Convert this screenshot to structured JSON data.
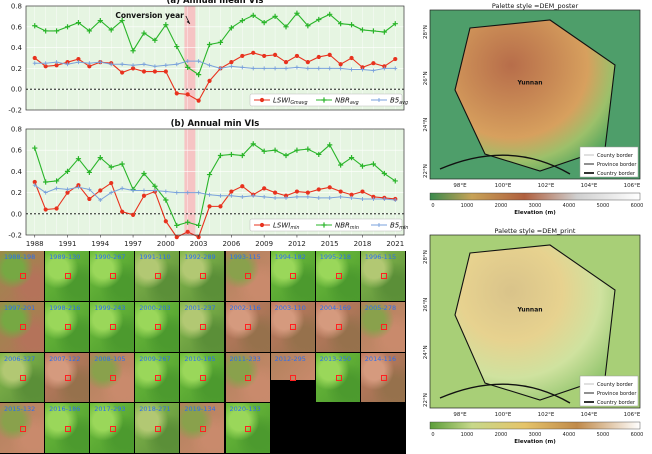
{
  "chart_data": [
    {
      "type": "line",
      "title": "(a) Annual mean VIs",
      "annotation": "Conversion year",
      "x": [
        1988,
        1989,
        1990,
        1991,
        1992,
        1993,
        1994,
        1995,
        1996,
        1997,
        1998,
        1999,
        2000,
        2001,
        2002,
        2003,
        2004,
        2005,
        2006,
        2007,
        2008,
        2009,
        2010,
        2011,
        2012,
        2013,
        2014,
        2015,
        2016,
        2017,
        2018,
        2019,
        2020,
        2021
      ],
      "ylim": [
        -0.2,
        0.8
      ],
      "yticks": [
        "0.8",
        "0.6",
        "0.4",
        "0.2",
        "0.0",
        "-0.2"
      ],
      "conversion_span": [
        2001.7,
        2002.7
      ],
      "series": [
        {
          "name": "LSWI_Gmavg",
          "legend_main": "LSWI",
          "legend_sub": "Gmavg",
          "color": "#e8321e",
          "values": [
            0.3,
            0.22,
            0.23,
            0.26,
            0.29,
            0.22,
            0.26,
            0.25,
            0.16,
            0.2,
            0.17,
            0.17,
            0.17,
            -0.04,
            -0.05,
            -0.11,
            0.08,
            0.2,
            0.26,
            0.32,
            0.35,
            0.32,
            0.33,
            0.26,
            0.32,
            0.26,
            0.31,
            0.33,
            0.24,
            0.3,
            0.21,
            0.25,
            0.22,
            0.29
          ]
        },
        {
          "name": "NBR_avg",
          "legend_main": "NBR",
          "legend_sub": "avg",
          "color": "#2ab52a",
          "values": [
            0.61,
            0.56,
            0.56,
            0.6,
            0.64,
            0.56,
            0.66,
            0.57,
            0.66,
            0.37,
            0.54,
            0.47,
            0.62,
            0.41,
            0.21,
            0.14,
            0.43,
            0.45,
            0.59,
            0.66,
            0.71,
            0.64,
            0.7,
            0.6,
            0.73,
            0.61,
            0.67,
            0.72,
            0.63,
            0.62,
            0.57,
            0.56,
            0.55,
            0.63
          ]
        },
        {
          "name": "B5_avg",
          "legend_main": "B5",
          "legend_sub": "avg",
          "color": "#7aa2dc",
          "values": [
            0.25,
            0.25,
            0.26,
            0.24,
            0.26,
            0.25,
            0.26,
            0.24,
            0.24,
            0.23,
            0.24,
            0.22,
            0.23,
            0.24,
            0.27,
            0.27,
            0.23,
            0.2,
            0.22,
            0.21,
            0.2,
            0.2,
            0.2,
            0.2,
            0.21,
            0.2,
            0.2,
            0.2,
            0.2,
            0.19,
            0.19,
            0.18,
            0.2,
            0.2
          ]
        }
      ]
    },
    {
      "type": "line",
      "title": "(b) Annual min VIs",
      "x": [
        1988,
        1989,
        1990,
        1991,
        1992,
        1993,
        1994,
        1995,
        1996,
        1997,
        1998,
        1999,
        2000,
        2001,
        2002,
        2003,
        2004,
        2005,
        2006,
        2007,
        2008,
        2009,
        2010,
        2011,
        2012,
        2013,
        2014,
        2015,
        2016,
        2017,
        2018,
        2019,
        2020,
        2021
      ],
      "ylim": [
        -0.2,
        0.8
      ],
      "yticks": [
        "0.8",
        "0.6",
        "0.4",
        "0.2",
        "0.0",
        "-0.2"
      ],
      "xtick_labels": [
        "1988",
        "1991",
        "1994",
        "1997",
        "2000",
        "2003",
        "2006",
        "2009",
        "2012",
        "2015",
        "2018",
        "2021"
      ],
      "conversion_span": [
        2001.7,
        2002.7
      ],
      "series": [
        {
          "name": "LSWI_min",
          "legend_main": "LSWI",
          "legend_sub": "min",
          "color": "#e8321e",
          "values": [
            0.3,
            0.04,
            0.05,
            0.2,
            0.27,
            0.14,
            0.22,
            0.29,
            0.02,
            -0.01,
            0.17,
            0.21,
            -0.07,
            -0.22,
            -0.17,
            -0.22,
            0.07,
            0.07,
            0.21,
            0.26,
            0.18,
            0.24,
            0.2,
            0.17,
            0.21,
            0.2,
            0.23,
            0.25,
            0.21,
            0.18,
            0.21,
            0.16,
            0.15,
            0.14
          ]
        },
        {
          "name": "NBR_min",
          "legend_main": "NBR",
          "legend_sub": "min",
          "color": "#2ab52a",
          "values": [
            0.62,
            0.3,
            0.31,
            0.4,
            0.52,
            0.39,
            0.53,
            0.44,
            0.47,
            0.23,
            0.38,
            0.26,
            0.13,
            -0.11,
            -0.08,
            -0.11,
            0.37,
            0.55,
            0.56,
            0.55,
            0.66,
            0.59,
            0.6,
            0.55,
            0.6,
            0.61,
            0.56,
            0.65,
            0.46,
            0.53,
            0.45,
            0.47,
            0.38,
            0.31
          ]
        },
        {
          "name": "B5_min",
          "legend_main": "B5",
          "legend_sub": "min",
          "color": "#7aa2dc",
          "values": [
            0.27,
            0.2,
            0.24,
            0.23,
            0.25,
            0.23,
            0.13,
            0.2,
            0.24,
            0.22,
            0.22,
            0.22,
            0.21,
            0.2,
            0.2,
            0.2,
            0.18,
            0.17,
            0.17,
            0.16,
            0.17,
            0.16,
            0.15,
            0.15,
            0.16,
            0.16,
            0.15,
            0.15,
            0.16,
            0.15,
            0.14,
            0.14,
            0.14,
            0.13
          ]
        }
      ]
    }
  ],
  "tiles": [
    {
      "label": "1988-198",
      "tone": "rg"
    },
    {
      "label": "1989-130",
      "tone": "g"
    },
    {
      "label": "1990-267",
      "tone": "g"
    },
    {
      "label": "1991-110",
      "tone": "gm"
    },
    {
      "label": "1992-289",
      "tone": "gm"
    },
    {
      "label": "1993-115",
      "tone": "rm"
    },
    {
      "label": "1994-182",
      "tone": "g"
    },
    {
      "label": "1995-218",
      "tone": "g"
    },
    {
      "label": "1996-115",
      "tone": "gm"
    },
    {
      "label": "1997-201",
      "tone": "rg"
    },
    {
      "label": "1998-216",
      "tone": "g"
    },
    {
      "label": "1999-243",
      "tone": "g"
    },
    {
      "label": "2000-203",
      "tone": "g"
    },
    {
      "label": "2001-237",
      "tone": "gm"
    },
    {
      "label": "2002-116",
      "tone": "r"
    },
    {
      "label": "2003-110",
      "tone": "r"
    },
    {
      "label": "2004-169",
      "tone": "r"
    },
    {
      "label": "2005-278",
      "tone": "rm"
    },
    {
      "label": "2006-327",
      "tone": "gm"
    },
    {
      "label": "2007-122",
      "tone": "r"
    },
    {
      "label": "2008-105",
      "tone": "rm"
    },
    {
      "label": "2009-267",
      "tone": "g"
    },
    {
      "label": "2010-185",
      "tone": "g"
    },
    {
      "label": "2011-233",
      "tone": "rm"
    },
    {
      "label": "2012-295",
      "tone": "rm"
    },
    {
      "label": "2013-250",
      "tone": "g"
    },
    {
      "label": "2014-116",
      "tone": "r"
    },
    {
      "label": "2015-132",
      "tone": "rm"
    },
    {
      "label": "2016-186",
      "tone": "g"
    },
    {
      "label": "2017-293",
      "tone": "g"
    },
    {
      "label": "2018-271",
      "tone": "gm"
    },
    {
      "label": "2019-134",
      "tone": "rm"
    },
    {
      "label": "2020-133",
      "tone": "g"
    }
  ],
  "maps": [
    {
      "title": "Palette style =DEM_poster",
      "place": "Yunnan",
      "lat_labels": [
        "28°N",
        "26°N",
        "24°N",
        "22°N"
      ],
      "lon_labels": [
        "98°E",
        "100°E",
        "102°E",
        "104°E",
        "106°E"
      ],
      "legend": [
        "County border",
        "Province border",
        "Country border"
      ],
      "cbar_ticks": [
        "0",
        "1000",
        "2000",
        "3000",
        "4000",
        "5000",
        "6000"
      ],
      "cbar_label": "Elevation (m)"
    },
    {
      "title": "Palette style =DEM_print",
      "place": "Yunnan",
      "lat_labels": [
        "28°N",
        "26°N",
        "24°N",
        "22°N"
      ],
      "lon_labels": [
        "98°E",
        "100°E",
        "102°E",
        "104°E",
        "106°E"
      ],
      "legend": [
        "County border",
        "Province border",
        "Country border"
      ],
      "cbar_ticks": [
        "0",
        "1000",
        "2000",
        "3000",
        "4000",
        "5000",
        "6000"
      ],
      "cbar_label": "Elevation (m)"
    }
  ]
}
